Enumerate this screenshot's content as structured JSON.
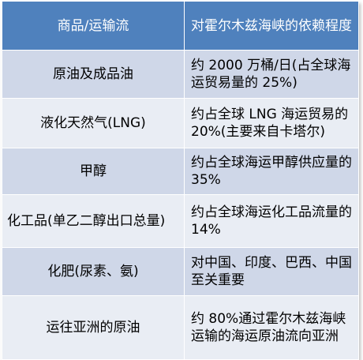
{
  "table": {
    "headers": [
      "商品/运输流",
      "对霍尔木兹海峡的依赖程度"
    ],
    "rows": [
      {
        "item": "原油及成品油",
        "dependency": "约 2000 万桶/日(占全球海运贸易量的 25%)"
      },
      {
        "item": "液化天然气(LNG)",
        "dependency": "约占全球 LNG 海运贸易的 20%(主要来自卡塔尔)"
      },
      {
        "item": "甲醇",
        "dependency": "约占全球海运甲醇供应量的 35%"
      },
      {
        "item": "化工品(单乙二醇出口总量)",
        "dependency": "约占全球海运化工品流量的 14%"
      },
      {
        "item": "化肥(尿素、氨)",
        "dependency": "对中国、印度、巴西、中国至关重要"
      },
      {
        "item": "运往亚洲的原油",
        "dependency": "约 80%通过霍尔木兹海峡运输的海运原油流向亚洲"
      }
    ]
  },
  "colors": {
    "header_bg": "#4f81bd",
    "row_dark": "#cfd7e8",
    "row_light": "#e9edf4"
  }
}
